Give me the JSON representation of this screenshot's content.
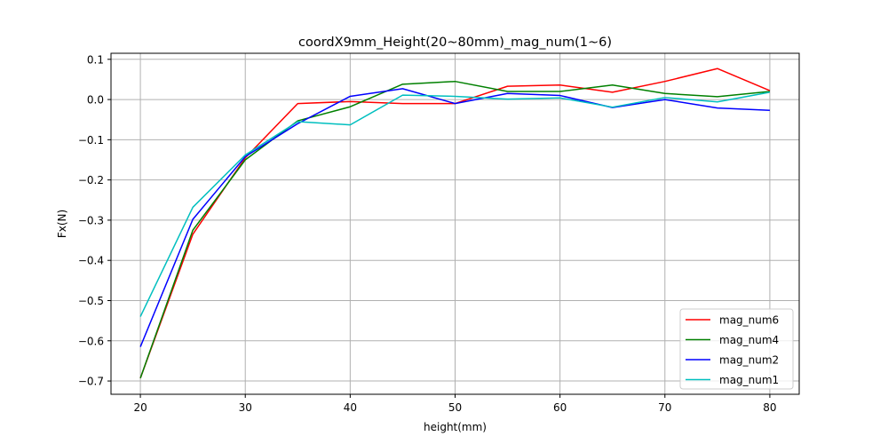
{
  "chart_data": {
    "type": "line",
    "title": "coordX9mm_Height(20~80mm)_mag_num(1~6)",
    "xlabel": "height(mm)",
    "ylabel": "Fx(N)",
    "xlim": [
      17.2,
      82.8
    ],
    "ylim": [
      -0.733,
      0.115
    ],
    "xticks": [
      20,
      30,
      40,
      50,
      60,
      70,
      80
    ],
    "yticks": [
      0.1,
      0.0,
      -0.1,
      -0.2,
      -0.3,
      -0.4,
      -0.5,
      -0.6,
      -0.7
    ],
    "ytick_labels": [
      "0.1",
      "0.0",
      "−0.1",
      "−0.2",
      "−0.3",
      "−0.4",
      "−0.5",
      "−0.6",
      "−0.7"
    ],
    "grid": true,
    "legend_position": "lower right",
    "x": [
      20,
      25,
      30,
      35,
      40,
      45,
      50,
      55,
      60,
      65,
      70,
      75,
      80
    ],
    "series": [
      {
        "name": "mag_num6",
        "color": "#ff0000",
        "values": [
          -0.693,
          -0.335,
          -0.145,
          -0.01,
          -0.005,
          -0.01,
          -0.01,
          0.033,
          0.036,
          0.018,
          0.045,
          0.077,
          0.022
        ]
      },
      {
        "name": "mag_num4",
        "color": "#008000",
        "values": [
          -0.693,
          -0.325,
          -0.15,
          -0.053,
          -0.018,
          0.038,
          0.045,
          0.02,
          0.02,
          0.036,
          0.015,
          0.007,
          0.02
        ]
      },
      {
        "name": "mag_num2",
        "color": "#0000ff",
        "values": [
          -0.615,
          -0.298,
          -0.142,
          -0.06,
          0.008,
          0.027,
          -0.01,
          0.015,
          0.01,
          -0.02,
          0.0,
          -0.021,
          -0.027
        ]
      },
      {
        "name": "mag_num1",
        "color": "#00bfbf",
        "values": [
          -0.54,
          -0.268,
          -0.138,
          -0.055,
          -0.063,
          0.011,
          0.008,
          0.001,
          0.004,
          -0.019,
          0.005,
          -0.006,
          0.018
        ]
      }
    ]
  }
}
